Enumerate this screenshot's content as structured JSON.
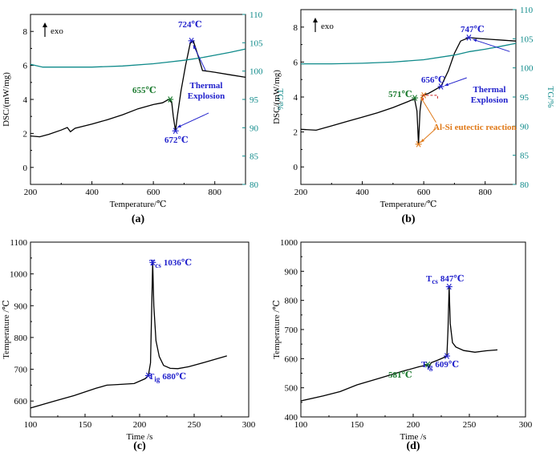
{
  "chart_data": [
    {
      "type": "line",
      "panel_label": "(a)",
      "xlabel": "Temperature/℃",
      "ylabel": "DSC/(mW/mg)",
      "y2label": "TG/%",
      "xlim": [
        200,
        900
      ],
      "ylim": [
        -1,
        9
      ],
      "y2lim": [
        80,
        110
      ],
      "xticks": [
        "200",
        "400",
        "600",
        "800"
      ],
      "yticks": [
        "0",
        "2",
        "4",
        "6",
        "8"
      ],
      "y2ticks": [
        "80",
        "85",
        "90",
        "95",
        "100",
        "105",
        "110"
      ],
      "exo_label": "exo",
      "series": [
        {
          "axis": "left",
          "color": "#000000",
          "x": [
            200,
            230,
            260,
            300,
            320,
            330,
            345,
            400,
            450,
            500,
            550,
            600,
            630,
            650,
            660,
            665,
            672,
            678,
            690,
            705,
            720,
            730,
            745,
            760,
            780,
            800,
            850,
            900
          ],
          "y": [
            1.85,
            1.8,
            1.95,
            2.2,
            2.35,
            2.1,
            2.3,
            2.55,
            2.8,
            3.1,
            3.45,
            3.7,
            3.8,
            4.0,
            3.8,
            3.0,
            2.15,
            3.0,
            4.5,
            6.0,
            7.3,
            7.45,
            6.6,
            5.7,
            5.65,
            5.6,
            5.45,
            5.3
          ]
        },
        {
          "axis": "right",
          "color": "#0f8a8a",
          "x": [
            200,
            240,
            300,
            400,
            500,
            600,
            650,
            700,
            750,
            800,
            850,
            900
          ],
          "y": [
            101.2,
            100.7,
            100.7,
            100.7,
            100.9,
            101.3,
            101.6,
            101.9,
            102.3,
            102.8,
            103.3,
            103.9
          ]
        }
      ],
      "markers": [
        {
          "x": 655,
          "y": 4.0,
          "color": "#1a7a2e"
        },
        {
          "x": 672,
          "y": 2.15,
          "color": "#2222cc"
        },
        {
          "x": 724,
          "y": 7.45,
          "color": "#2222cc"
        }
      ],
      "annotations": [
        {
          "text": "724℃",
          "color": "#2222cc"
        },
        {
          "text": "655℃",
          "color": "#1a7a2e"
        },
        {
          "text": "672℃",
          "color": "#2222cc"
        },
        {
          "text": "Thermal",
          "color": "#2222cc"
        },
        {
          "text": "Explosion",
          "color": "#2222cc"
        }
      ]
    },
    {
      "type": "line",
      "panel_label": "(b)",
      "xlabel": "Temperature/℃",
      "ylabel": "DSC/(mW/mg)",
      "y2label": "TG/%",
      "xlim": [
        200,
        900
      ],
      "ylim": [
        -1,
        9
      ],
      "y2lim": [
        80,
        110
      ],
      "xticks": [
        "200",
        "400",
        "600",
        "800"
      ],
      "yticks": [
        "0",
        "2",
        "4",
        "6",
        "8"
      ],
      "y2ticks": [
        "80",
        "85",
        "90",
        "95",
        "100",
        "105",
        "110"
      ],
      "exo_label": "exo",
      "series": [
        {
          "axis": "left",
          "color": "#000000",
          "x": [
            200,
            250,
            300,
            350,
            400,
            450,
            500,
            550,
            570,
            578,
            583,
            588,
            593,
            598,
            603,
            615,
            630,
            645,
            656,
            680,
            700,
            720,
            747,
            780,
            820,
            860,
            900
          ],
          "y": [
            2.15,
            2.1,
            2.35,
            2.6,
            2.85,
            3.1,
            3.4,
            3.75,
            3.9,
            3.2,
            1.3,
            3.2,
            3.95,
            4.1,
            4.15,
            4.2,
            4.35,
            4.5,
            4.6,
            5.5,
            6.5,
            7.2,
            7.4,
            7.35,
            7.3,
            7.25,
            7.2
          ]
        },
        {
          "axis": "right",
          "color": "#0f8a8a",
          "x": [
            200,
            300,
            400,
            500,
            600,
            700,
            750,
            800,
            850,
            900
          ],
          "y": [
            100.7,
            100.7,
            100.8,
            101.0,
            101.4,
            102.2,
            102.8,
            103.2,
            103.7,
            104.2
          ]
        }
      ],
      "markers": [
        {
          "x": 571,
          "y": 3.95,
          "color": "#1a7a2e"
        },
        {
          "x": 583,
          "y": 1.3,
          "color": "#e07a1a"
        },
        {
          "x": 600,
          "y": 4.1,
          "color": "#e07a1a"
        },
        {
          "x": 656,
          "y": 4.6,
          "color": "#2222cc"
        },
        {
          "x": 747,
          "y": 7.4,
          "color": "#2222cc"
        }
      ],
      "annotations": [
        {
          "text": "747℃",
          "color": "#2222cc"
        },
        {
          "text": "656℃",
          "color": "#2222cc"
        },
        {
          "text": "571℃",
          "color": "#1a7a2e"
        },
        {
          "text": "Thermal",
          "color": "#2222cc"
        },
        {
          "text": "Explosion",
          "color": "#2222cc"
        },
        {
          "text": "Al-Si eutectic reaction",
          "color": "#e07a1a"
        }
      ]
    },
    {
      "type": "line",
      "panel_label": "(c)",
      "xlabel": "Time /s",
      "ylabel": "Temperature /℃",
      "xlim": [
        100,
        300
      ],
      "ylim": [
        550,
        1100
      ],
      "xticks": [
        "100",
        "150",
        "200",
        "250",
        "300"
      ],
      "yticks": [
        "600",
        "700",
        "800",
        "900",
        "1000",
        "1100"
      ],
      "series": [
        {
          "axis": "left",
          "color": "#000000",
          "x": [
            100,
            120,
            140,
            160,
            170,
            180,
            195,
            205,
            208,
            210,
            212,
            213,
            215,
            218,
            222,
            228,
            235,
            245,
            260,
            280
          ],
          "y": [
            578,
            598,
            617,
            640,
            650,
            652,
            655,
            670,
            680,
            720,
            1036,
            900,
            790,
            740,
            712,
            703,
            702,
            708,
            722,
            742
          ]
        }
      ],
      "markers": [
        {
          "x": 208,
          "y": 680,
          "color": "#2222cc"
        },
        {
          "x": 212,
          "y": 1036,
          "color": "#2222cc"
        }
      ],
      "annotations": [
        {
          "text": "T",
          "sub": "cs",
          "value": "1036℃",
          "color": "#2222cc"
        },
        {
          "text": "T",
          "sub": "ig",
          "value": "680℃",
          "color": "#2222cc"
        }
      ]
    },
    {
      "type": "line",
      "panel_label": "(d)",
      "xlabel": "Time /s",
      "ylabel": "Temperature /℃",
      "xlim": [
        100,
        300
      ],
      "ylim": [
        400,
        1000
      ],
      "xticks": [
        "100",
        "150",
        "200",
        "250",
        "300"
      ],
      "yticks": [
        "400",
        "500",
        "600",
        "700",
        "800",
        "900",
        "1000"
      ],
      "series": [
        {
          "axis": "left",
          "color": "#000000",
          "x": [
            100,
            120,
            135,
            150,
            170,
            190,
            205,
            212,
            214,
            216,
            222,
            228,
            230,
            231,
            232,
            233,
            235,
            238,
            245,
            255,
            265,
            275
          ],
          "y": [
            455,
            472,
            487,
            510,
            533,
            556,
            572,
            578,
            570,
            586,
            595,
            605,
            609,
            700,
            847,
            720,
            655,
            640,
            628,
            622,
            627,
            630
          ]
        }
      ],
      "markers": [
        {
          "x": 213,
          "y": 580,
          "color": "#1a7a2e"
        },
        {
          "x": 230,
          "y": 609,
          "color": "#2222cc"
        },
        {
          "x": 232,
          "y": 847,
          "color": "#2222cc"
        }
      ],
      "annotations": [
        {
          "text": "T",
          "sub": "cs",
          "value": "847℃",
          "color": "#2222cc"
        },
        {
          "text": "T",
          "sub": "ig",
          "value": "609℃",
          "color": "#2222cc"
        },
        {
          "text": "581℃",
          "color": "#1a7a2e"
        }
      ]
    }
  ]
}
